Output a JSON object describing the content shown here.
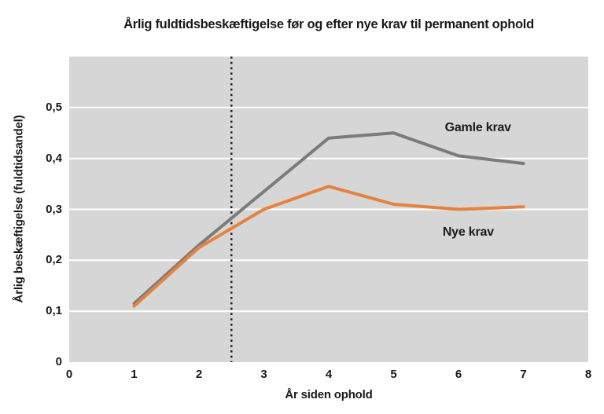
{
  "title": "Årlig fuldtidsbeskæftigelse før og efter nye krav til permanent ophold",
  "chart_data": {
    "type": "line",
    "title": "Årlig fuldtidsbeskæftigelse før og efter nye krav til permanent ophold",
    "xlabel": "År siden ophold",
    "ylabel": "Årlig beskæftigelse (fuldtidsandel)",
    "x": [
      1,
      2,
      3,
      4,
      5,
      6,
      7
    ],
    "series": [
      {
        "name": "Gamle krav",
        "color": "#7b7b7b",
        "values": [
          0.115,
          0.23,
          0.335,
          0.44,
          0.45,
          0.405,
          0.39
        ]
      },
      {
        "name": "Nye krav",
        "color": "#e5823e",
        "values": [
          0.11,
          0.225,
          0.3,
          0.345,
          0.31,
          0.3,
          0.305
        ]
      }
    ],
    "xlim": [
      0,
      8
    ],
    "ylim": [
      0,
      0.6
    ],
    "x_ticks": [
      0,
      1,
      2,
      3,
      4,
      5,
      6,
      7,
      8
    ],
    "x_tick_labels": [
      "0",
      "1",
      "2",
      "3",
      "4",
      "5",
      "6",
      "7",
      "8"
    ],
    "y_ticks": [
      0,
      0.1,
      0.2,
      0.3,
      0.4,
      0.5
    ],
    "y_tick_labels": [
      "0",
      "0,1",
      "0,2",
      "0,3",
      "0,4",
      "0,5"
    ],
    "reference_line": {
      "x": 2.5,
      "style": "dotted",
      "color": "#1a1a1a"
    },
    "grid": "horizontal",
    "gridline_color": "#ffffff",
    "plot_background": "#d6d6d6",
    "legend_position": "inline-annotations",
    "annotations": [
      {
        "text": "Gamle krav",
        "x": 6.3,
        "y": 0.46
      },
      {
        "text": "Nye krav",
        "x": 6.15,
        "y": 0.255
      }
    ]
  }
}
